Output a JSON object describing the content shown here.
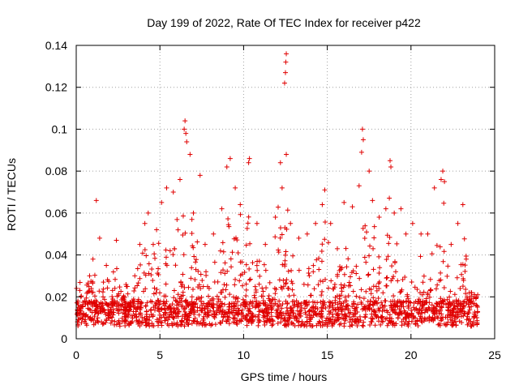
{
  "chart_data": {
    "type": "scatter",
    "title": "Day 199 of 2022, Rate Of TEC Index for receiver p422",
    "xlabel": "GPS time / hours",
    "ylabel": "ROTI / TECUs",
    "xlim": [
      0,
      25
    ],
    "ylim": [
      0,
      0.14
    ],
    "xticks": [
      0,
      5,
      10,
      15,
      20,
      25
    ],
    "xtick_labels": [
      "0",
      "5",
      "10",
      "15",
      "20",
      "25"
    ],
    "yticks": [
      0,
      0.02,
      0.04,
      0.06,
      0.08,
      0.1,
      0.12,
      0.14
    ],
    "ytick_labels": [
      "0",
      "0.02",
      "0.04",
      "0.06",
      "0.08",
      "0.1",
      "0.12",
      "0.14"
    ],
    "grid": true,
    "marker": "plus",
    "color": "#e00000",
    "series": [
      {
        "points": [
          [
            0.2,
            0.012
          ],
          [
            0.5,
            0.018
          ],
          [
            0.8,
            0.03
          ],
          [
            1.0,
            0.038
          ],
          [
            1.2,
            0.066
          ],
          [
            1.4,
            0.048
          ],
          [
            1.6,
            0.02
          ],
          [
            1.8,
            0.035
          ],
          [
            2.2,
            0.014
          ],
          [
            2.4,
            0.047
          ],
          [
            3.0,
            0.025
          ],
          [
            3.5,
            0.03
          ],
          [
            3.8,
            0.045
          ],
          [
            4.1,
            0.055
          ],
          [
            4.3,
            0.06
          ],
          [
            4.6,
            0.045
          ],
          [
            4.8,
            0.052
          ],
          [
            5.1,
            0.065
          ],
          [
            5.4,
            0.072
          ],
          [
            5.8,
            0.07
          ],
          [
            6.2,
            0.076
          ],
          [
            6.45,
            0.1
          ],
          [
            6.5,
            0.104
          ],
          [
            6.55,
            0.098
          ],
          [
            6.6,
            0.094
          ],
          [
            6.8,
            0.088
          ],
          [
            7.0,
            0.06
          ],
          [
            7.4,
            0.078
          ],
          [
            7.7,
            0.045
          ],
          [
            8.2,
            0.05
          ],
          [
            8.7,
            0.062
          ],
          [
            9.0,
            0.082
          ],
          [
            9.2,
            0.086
          ],
          [
            9.5,
            0.072
          ],
          [
            9.8,
            0.064
          ],
          [
            10.3,
            0.084
          ],
          [
            10.35,
            0.086
          ],
          [
            10.8,
            0.055
          ],
          [
            11.3,
            0.045
          ],
          [
            11.9,
            0.058
          ],
          [
            12.2,
            0.084
          ],
          [
            12.3,
            0.072
          ],
          [
            12.45,
            0.122
          ],
          [
            12.5,
            0.127
          ],
          [
            12.52,
            0.132
          ],
          [
            12.55,
            0.136
          ],
          [
            12.55,
            0.088
          ],
          [
            12.8,
            0.055
          ],
          [
            13.3,
            0.048
          ],
          [
            13.8,
            0.05
          ],
          [
            14.3,
            0.055
          ],
          [
            14.7,
            0.064
          ],
          [
            14.85,
            0.071
          ],
          [
            15.2,
            0.055
          ],
          [
            15.6,
            0.043
          ],
          [
            16.0,
            0.065
          ],
          [
            16.5,
            0.063
          ],
          [
            16.9,
            0.073
          ],
          [
            17.05,
            0.089
          ],
          [
            17.1,
            0.1
          ],
          [
            17.15,
            0.095
          ],
          [
            17.5,
            0.08
          ],
          [
            17.7,
            0.066
          ],
          [
            18.1,
            0.058
          ],
          [
            18.5,
            0.062
          ],
          [
            18.75,
            0.085
          ],
          [
            18.8,
            0.082
          ],
          [
            19.0,
            0.06
          ],
          [
            19.4,
            0.062
          ],
          [
            19.7,
            0.05
          ],
          [
            20.1,
            0.055
          ],
          [
            20.6,
            0.05
          ],
          [
            21.0,
            0.05
          ],
          [
            21.4,
            0.072
          ],
          [
            21.8,
            0.076
          ],
          [
            21.9,
            0.08
          ],
          [
            22.0,
            0.075
          ],
          [
            22.4,
            0.045
          ],
          [
            22.8,
            0.055
          ],
          [
            23.1,
            0.064
          ],
          [
            23.3,
            0.038
          ],
          [
            23.6,
            0.022
          ],
          [
            23.9,
            0.02
          ]
        ]
      }
    ]
  }
}
